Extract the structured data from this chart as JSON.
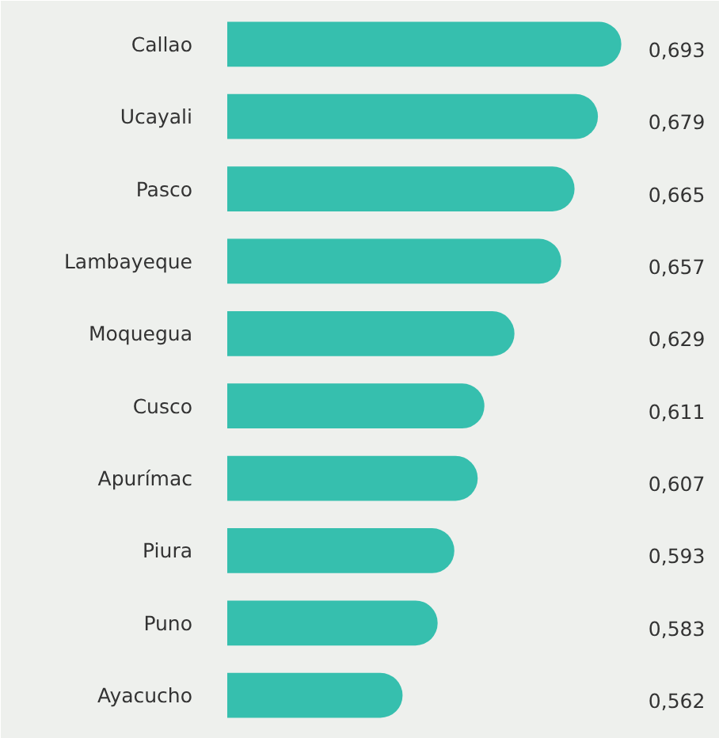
{
  "chart_data": {
    "type": "bar",
    "orientation": "horizontal",
    "categories": [
      "Callao",
      "Ucayali",
      "Pasco",
      "Lambayeque",
      "Moquegua",
      "Cusco",
      "Apurímac",
      "Piura",
      "Puno",
      "Ayacucho"
    ],
    "values": [
      0.693,
      0.679,
      0.665,
      0.657,
      0.629,
      0.611,
      0.607,
      0.593,
      0.583,
      0.562
    ],
    "value_labels": [
      "0,693",
      "0,679",
      "0,665",
      "0,657",
      "0,629",
      "0,611",
      "0,607",
      "0,593",
      "0,583",
      "0,562"
    ],
    "color": "#36bfae",
    "xlim": [
      0.457,
      0.752
    ],
    "grid": false
  }
}
